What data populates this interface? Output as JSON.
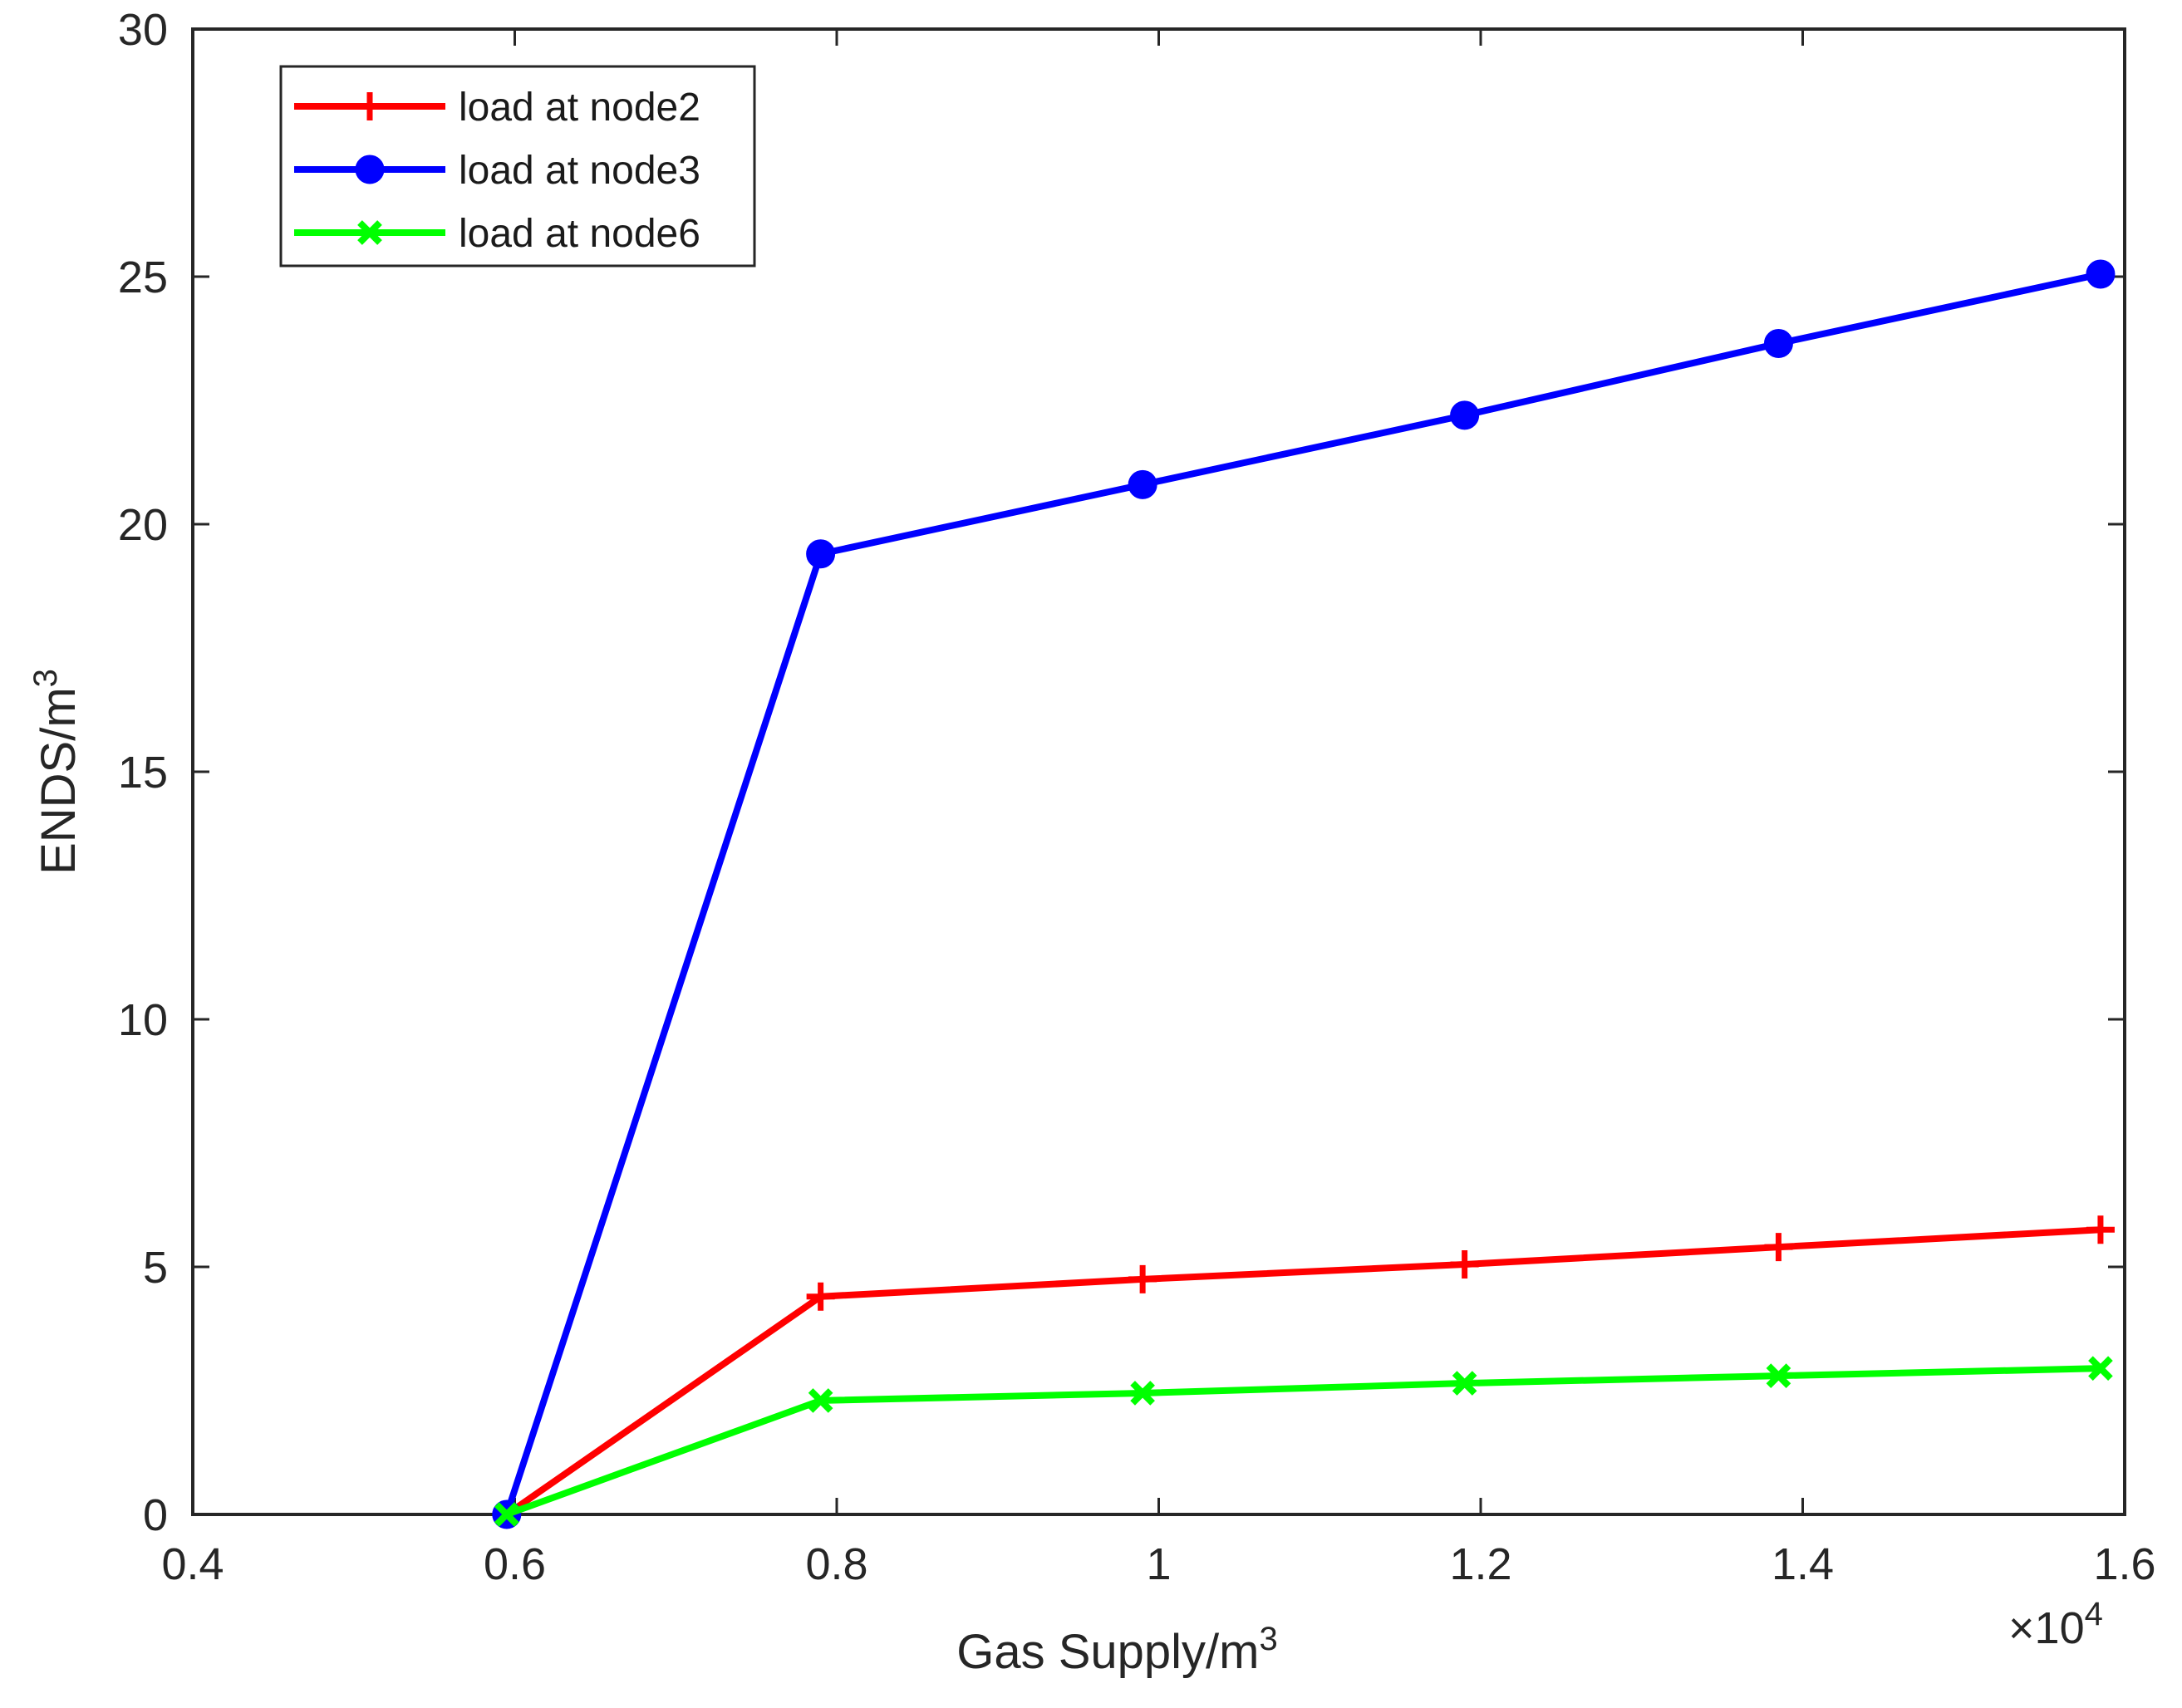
{
  "chart_data": {
    "type": "line",
    "title": "",
    "xlabel": "Gas Supply/m",
    "xlabel_superscript": "3",
    "ylabel": "ENDS/m",
    "ylabel_superscript": "3",
    "x_scale_note": "×10",
    "x_scale_exponent": "4",
    "xlim": [
      0.4,
      1.6
    ],
    "ylim": [
      0,
      30
    ],
    "xticks": [
      0.4,
      0.6,
      0.8,
      1.0,
      1.2,
      1.4,
      1.6
    ],
    "xtick_labels": [
      "0.4",
      "0.6",
      "0.8",
      "1",
      "1.2",
      "1.4",
      "1.6"
    ],
    "yticks": [
      0,
      5,
      10,
      15,
      20,
      25,
      30
    ],
    "ytick_labels": [
      "0",
      "5",
      "10",
      "15",
      "20",
      "25",
      "30"
    ],
    "grid": false,
    "legend_position": "top-left",
    "x": [
      0.595,
      0.79,
      0.99,
      1.19,
      1.385,
      1.585
    ],
    "series": [
      {
        "name": "load at node2",
        "color": "#ff0000",
        "marker": "plus",
        "values": [
          0,
          4.4,
          4.75,
          5.05,
          5.4,
          5.75
        ]
      },
      {
        "name": "load at node3",
        "color": "#0000ff",
        "marker": "circle",
        "values": [
          0,
          19.4,
          20.8,
          22.2,
          23.65,
          25.05
        ]
      },
      {
        "name": "load at node6",
        "color": "#00ff00",
        "marker": "x",
        "values": [
          0,
          2.3,
          2.45,
          2.65,
          2.8,
          2.95
        ]
      }
    ]
  }
}
